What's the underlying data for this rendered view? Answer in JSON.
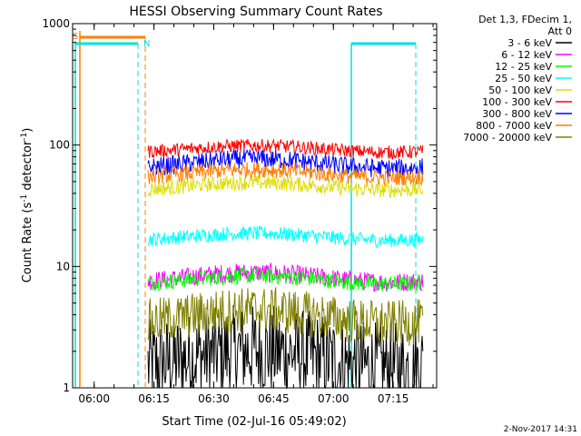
{
  "chart_data": {
    "type": "line",
    "title": "HESSI Observing Summary Count Rates",
    "xlabel": "Start Time (02-Jul-16 05:49:02)",
    "ylabel_main": "Count Rate (s",
    "ylabel_sup1": "-1",
    "ylabel_mid": " detector",
    "ylabel_sup2": "-1",
    "ylabel_end": ")",
    "yscale": "log",
    "ylim": [
      1,
      1000
    ],
    "xlim_minutes": [
      5.6,
      96.9
    ],
    "x_tick_labels": [
      "06:00",
      "06:15",
      "06:30",
      "06:45",
      "07:00",
      "07:15"
    ],
    "x_tick_minutes": [
      11,
      26,
      41,
      56,
      71,
      86
    ],
    "y_tick_labels": [
      "1",
      "10",
      "100",
      "1000"
    ],
    "y_tick_values": [
      1,
      10,
      100,
      1000
    ],
    "legend_header": [
      "Det 1,3, FDecim 1,",
      "Att 0"
    ],
    "series": [
      {
        "name": "3 - 6 keV",
        "color": "#000000",
        "approx_range": [
          1,
          3
        ]
      },
      {
        "name": "6 - 12 keV",
        "color": "#ff00ff",
        "approx_range": [
          6,
          11
        ]
      },
      {
        "name": "12 - 25 keV",
        "color": "#00ff00",
        "approx_range": [
          6,
          10
        ]
      },
      {
        "name": "25 - 50 keV",
        "color": "#00ffff",
        "approx_range": [
          14,
          22
        ]
      },
      {
        "name": "50 - 100 keV",
        "color": "#dddd00",
        "approx_range": [
          36,
          58
        ]
      },
      {
        "name": "100 - 300 keV",
        "color": "#ff0000",
        "approx_range": [
          75,
          115
        ]
      },
      {
        "name": "300 - 800 keV",
        "color": "#0000ff",
        "approx_range": [
          52,
          95
        ]
      },
      {
        "name": "800 - 7000 keV",
        "color": "#ff7f00",
        "approx_range": [
          45,
          75
        ]
      },
      {
        "name": "7000 - 20000 keV",
        "color": "#808000",
        "approx_range": [
          2.5,
          6
        ]
      }
    ],
    "annotations": {
      "saa_label": "S",
      "night_label": "N"
    },
    "footer_date": "2-Nov-2017 14:31"
  }
}
